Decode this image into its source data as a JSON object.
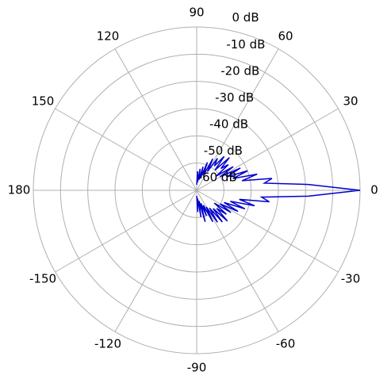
{
  "chart_data": {
    "type": "polar",
    "rlim": [
      -60,
      0
    ],
    "rticks": [
      {
        "value": 0,
        "label": "0 dB"
      },
      {
        "value": -10,
        "label": "-10 dB"
      },
      {
        "value": -20,
        "label": "-20 dB"
      },
      {
        "value": -30,
        "label": "-30 dB"
      },
      {
        "value": -40,
        "label": "-40 dB"
      },
      {
        "value": -50,
        "label": "-50 dB"
      },
      {
        "value": -60,
        "label": "-60 dB"
      }
    ],
    "thetaticks": [
      0,
      30,
      60,
      90,
      120,
      150,
      180,
      -150,
      -120,
      -90,
      -60,
      -30
    ],
    "grid": true,
    "series": [
      {
        "color": "#0000cc",
        "theta": [
          -90,
          -87,
          -84,
          -81,
          -78,
          -75,
          -72,
          -69,
          -66,
          -63,
          -60,
          -57,
          -54,
          -51,
          -48,
          -45,
          -42,
          -39,
          -36,
          -33,
          -30,
          -27,
          -24,
          -21,
          -18,
          -15,
          -12,
          -9,
          -6,
          -3,
          0,
          3,
          6,
          9,
          12,
          15,
          18,
          21,
          24,
          27,
          30,
          33,
          36,
          39,
          42,
          45,
          48,
          51,
          54,
          57,
          60,
          63,
          66,
          69,
          72,
          75,
          78,
          81,
          84,
          87,
          90
        ],
        "values": [
          -58,
          -52,
          -57,
          -50,
          -56,
          -48,
          -55,
          -50,
          -54,
          -47,
          -53,
          -46,
          -52,
          -45,
          -51,
          -44,
          -50,
          -46,
          -52,
          -45,
          -50,
          -43,
          -49,
          -41,
          -47,
          -38,
          -44,
          -33,
          -36,
          -19,
          0,
          -19,
          -35,
          -32,
          -43,
          -37,
          -46,
          -40,
          -48,
          -42,
          -50,
          -44,
          -51,
          -45,
          -48,
          -43,
          -50,
          -44,
          -49,
          -46,
          -52,
          -47,
          -54,
          -49,
          -55,
          -51,
          -56,
          -52,
          -57,
          -53,
          -58
        ]
      }
    ]
  }
}
